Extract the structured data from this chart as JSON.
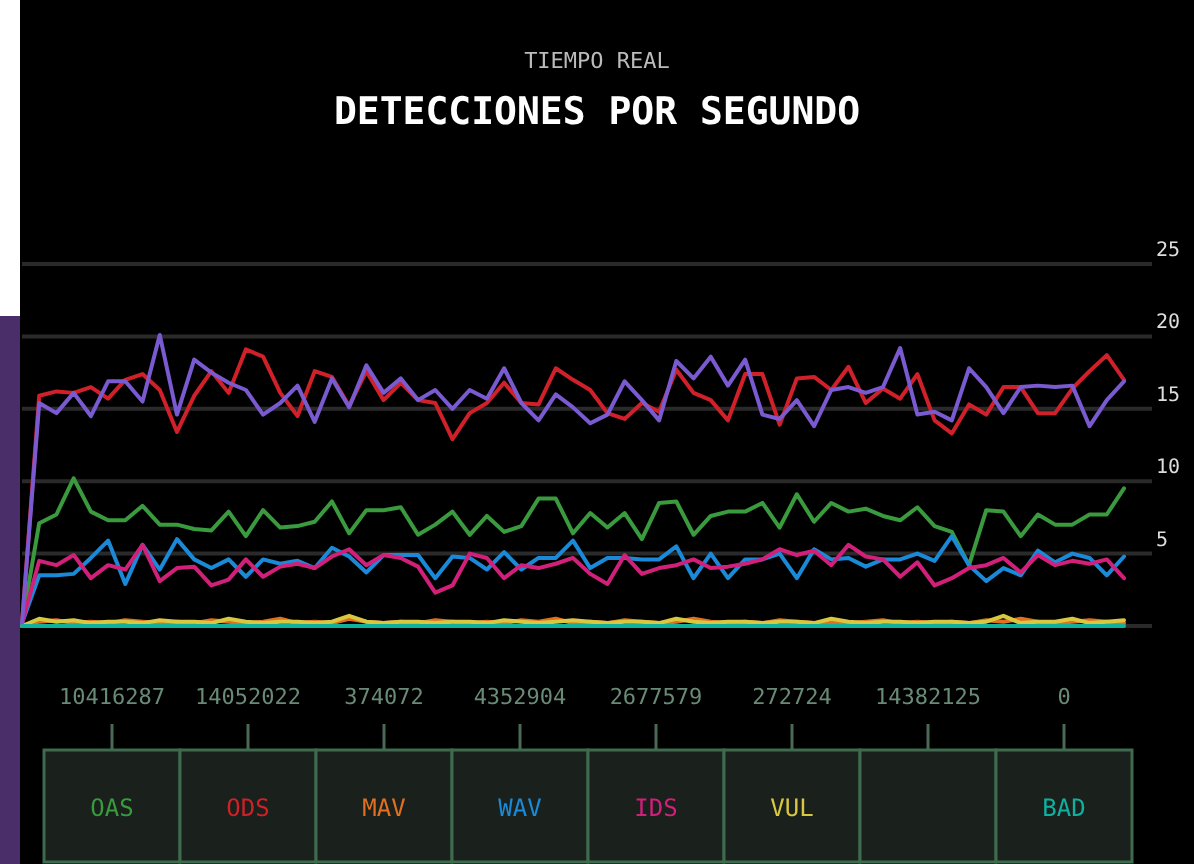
{
  "chart_data": {
    "type": "line",
    "subtitle": "TIEMPO REAL",
    "title": "DETECCIONES POR SEGUNDO",
    "categories": [
      null,
      null,
      null,
      null,
      null,
      null,
      null,
      null,
      null,
      null,
      null,
      null,
      null,
      null,
      null,
      null,
      null,
      null,
      null,
      null,
      null,
      null,
      null,
      null,
      null,
      null,
      null,
      null,
      null,
      null,
      null,
      null,
      null,
      null,
      null,
      null,
      null,
      null,
      null,
      null,
      null,
      null,
      null,
      null,
      null,
      null,
      null,
      null,
      null,
      null,
      null,
      null,
      null,
      null,
      null,
      null,
      null,
      null,
      null,
      null,
      null,
      null,
      null,
      null,
      null
    ],
    "ylim": [
      0,
      25
    ],
    "yticks": [
      {
        "value": 0,
        "label": null
      },
      5,
      10,
      15,
      20,
      25
    ],
    "grid": "y",
    "legend": "bottom",
    "tick_labels": "y",
    "marker": "none",
    "line_style": "solid",
    "annotations": [
      "10416287",
      "14052022",
      "374072",
      "4352904",
      "2677579",
      "272724",
      "14382125",
      "0"
    ],
    "series": [
      {
        "name": "OAS",
        "color": "#3a9a3e",
        "values": [
          0.2,
          7.1,
          7.7,
          10.2,
          7.9,
          7.3,
          7.3,
          8.3,
          7.0,
          7.0,
          6.7,
          6.6,
          7.9,
          6.2,
          8.0,
          6.8,
          6.9,
          7.2,
          8.6,
          6.4,
          8.0,
          8.0,
          8.2,
          6.3,
          7.0,
          7.9,
          6.3,
          7.6,
          6.5,
          6.9,
          8.8,
          8.8,
          6.4,
          7.8,
          6.8,
          7.8,
          6.0,
          8.5,
          8.6,
          6.3,
          7.6,
          7.9,
          7.9,
          8.5,
          6.8,
          9.1,
          7.2,
          8.5,
          7.9,
          8.1,
          7.6,
          7.3,
          8.2,
          6.9,
          6.5,
          4.2,
          8.0,
          7.9,
          6.2,
          7.7,
          7.0,
          7.0,
          7.7,
          7.7,
          9.5
        ]
      },
      {
        "name": "ODS",
        "color": "#d0202a",
        "values": [
          0.2,
          15.9,
          16.2,
          16.1,
          16.5,
          15.7,
          17.0,
          17.4,
          16.3,
          13.4,
          15.9,
          17.6,
          16.1,
          19.1,
          18.6,
          16.1,
          14.5,
          17.6,
          17.2,
          15.2,
          17.6,
          15.6,
          16.8,
          15.6,
          15.4,
          12.9,
          14.7,
          15.4,
          16.8,
          15.4,
          15.3,
          17.8,
          17.0,
          16.3,
          14.7,
          14.3,
          15.4,
          14.8,
          17.7,
          16.1,
          15.6,
          14.2,
          17.4,
          17.4,
          13.9,
          17.1,
          17.2,
          16.3,
          17.9,
          15.4,
          16.4,
          15.7,
          17.4,
          14.2,
          13.3,
          15.3,
          14.6,
          16.5,
          16.5,
          14.7,
          14.7,
          16.4,
          17.6,
          18.7,
          17.0
        ]
      },
      {
        "name": "MAV",
        "color": "#e07020",
        "values": [
          0,
          0.3,
          0.4,
          0.2,
          0.3,
          0.2,
          0.4,
          0.3,
          0.2,
          0.3,
          0.2,
          0.4,
          0.3,
          0.2,
          0.3,
          0.5,
          0.2,
          0.3,
          0.2,
          0.5,
          0.3,
          0.2,
          0.3,
          0.2,
          0.4,
          0.3,
          0.2,
          0.3,
          0.2,
          0.4,
          0.3,
          0.5,
          0.2,
          0.3,
          0.2,
          0.4,
          0.3,
          0.2,
          0.3,
          0.5,
          0.3,
          0.2,
          0.3,
          0.2,
          0.4,
          0.3,
          0.2,
          0.3,
          0.2,
          0.3,
          0.4,
          0.2,
          0.3,
          0.2,
          0.3,
          0.2,
          0.4,
          0.3,
          0.5,
          0.3,
          0.2,
          0.3,
          0.4,
          0.3,
          0.2
        ]
      },
      {
        "name": "WAV",
        "color": "#1a8ad8",
        "values": [
          0.2,
          3.5,
          3.5,
          3.6,
          4.7,
          5.9,
          2.9,
          5.6,
          3.9,
          6.0,
          4.6,
          4.0,
          4.6,
          3.4,
          4.6,
          4.3,
          4.5,
          4.0,
          5.4,
          4.8,
          3.7,
          4.9,
          4.9,
          4.9,
          3.3,
          4.8,
          4.7,
          3.9,
          5.1,
          3.9,
          4.7,
          4.7,
          5.9,
          4.0,
          4.7,
          4.7,
          4.6,
          4.6,
          5.5,
          3.3,
          5.0,
          3.3,
          4.6,
          4.6,
          5.0,
          3.3,
          5.3,
          4.6,
          4.7,
          4.1,
          4.6,
          4.6,
          5.0,
          4.5,
          6.2,
          4.2,
          3.1,
          4.0,
          3.5,
          5.2,
          4.4,
          5.0,
          4.7,
          3.5,
          4.8
        ]
      },
      {
        "name": "IDS",
        "color": "#d0207a",
        "values": [
          0.2,
          4.5,
          4.2,
          4.9,
          3.3,
          4.2,
          3.9,
          5.6,
          3.1,
          4.0,
          4.1,
          2.8,
          3.2,
          4.6,
          3.4,
          4.1,
          4.3,
          4.0,
          4.8,
          5.3,
          4.2,
          4.9,
          4.7,
          4.1,
          2.3,
          2.8,
          5.0,
          4.7,
          3.3,
          4.2,
          4.0,
          4.3,
          4.7,
          3.6,
          2.9,
          4.9,
          3.6,
          4.0,
          4.2,
          4.6,
          4.0,
          4.1,
          4.3,
          4.6,
          5.3,
          4.9,
          5.2,
          4.2,
          5.6,
          4.8,
          4.6,
          3.4,
          4.4,
          2.8,
          3.3,
          4.0,
          4.2,
          4.7,
          3.7,
          4.9,
          4.2,
          4.5,
          4.3,
          4.6,
          3.3
        ]
      },
      {
        "name": "VUL",
        "color": "#d8c840",
        "values": [
          0,
          0.5,
          0.3,
          0.4,
          0.2,
          0.3,
          0.3,
          0.2,
          0.4,
          0.3,
          0.3,
          0.2,
          0.5,
          0.3,
          0.2,
          0.3,
          0.3,
          0.2,
          0.3,
          0.7,
          0.3,
          0.2,
          0.3,
          0.3,
          0.2,
          0.3,
          0.3,
          0.2,
          0.4,
          0.3,
          0.2,
          0.3,
          0.4,
          0.3,
          0.2,
          0.3,
          0.3,
          0.2,
          0.5,
          0.3,
          0.2,
          0.3,
          0.3,
          0.2,
          0.3,
          0.3,
          0.2,
          0.5,
          0.3,
          0.2,
          0.3,
          0.3,
          0.2,
          0.3,
          0.3,
          0.2,
          0.3,
          0.7,
          0.2,
          0.3,
          0.3,
          0.5,
          0.2,
          0.3,
          0.4
        ]
      },
      {
        "color": "#7a5ad0",
        "values": [
          0.2,
          15.4,
          14.7,
          16.1,
          14.5,
          16.9,
          16.9,
          15.5,
          20.1,
          14.6,
          18.4,
          17.5,
          16.8,
          16.3,
          14.6,
          15.4,
          16.6,
          14.1,
          17.1,
          15.1,
          18.0,
          16.1,
          17.1,
          15.6,
          16.3,
          15.0,
          16.3,
          15.7,
          17.8,
          15.4,
          14.2,
          16.0,
          15.1,
          14.0,
          14.6,
          16.9,
          15.6,
          14.2,
          18.3,
          17.1,
          18.6,
          16.6,
          18.4,
          14.6,
          14.3,
          15.6,
          13.8,
          16.3,
          16.5,
          16.1,
          16.5,
          19.2,
          14.6,
          14.8,
          14.2,
          17.8,
          16.5,
          14.7,
          16.5,
          16.6,
          16.5,
          16.6,
          13.8,
          15.6,
          16.9
        ]
      },
      {
        "name": "BAD",
        "color": "#10b0a0",
        "values": [
          0,
          0,
          0,
          0,
          0,
          0,
          0,
          0,
          0,
          0,
          0,
          0,
          0,
          0,
          0,
          0,
          0,
          0,
          0,
          0,
          0,
          0,
          0,
          0,
          0,
          0,
          0,
          0,
          0,
          0,
          0,
          0,
          0,
          0,
          0,
          0,
          0,
          0,
          0,
          0,
          0,
          0,
          0,
          0,
          0,
          0,
          0,
          0,
          0,
          0,
          0,
          0,
          0,
          0,
          0,
          0,
          0,
          0,
          0,
          0,
          0,
          0,
          0,
          0,
          0
        ]
      }
    ]
  }
}
